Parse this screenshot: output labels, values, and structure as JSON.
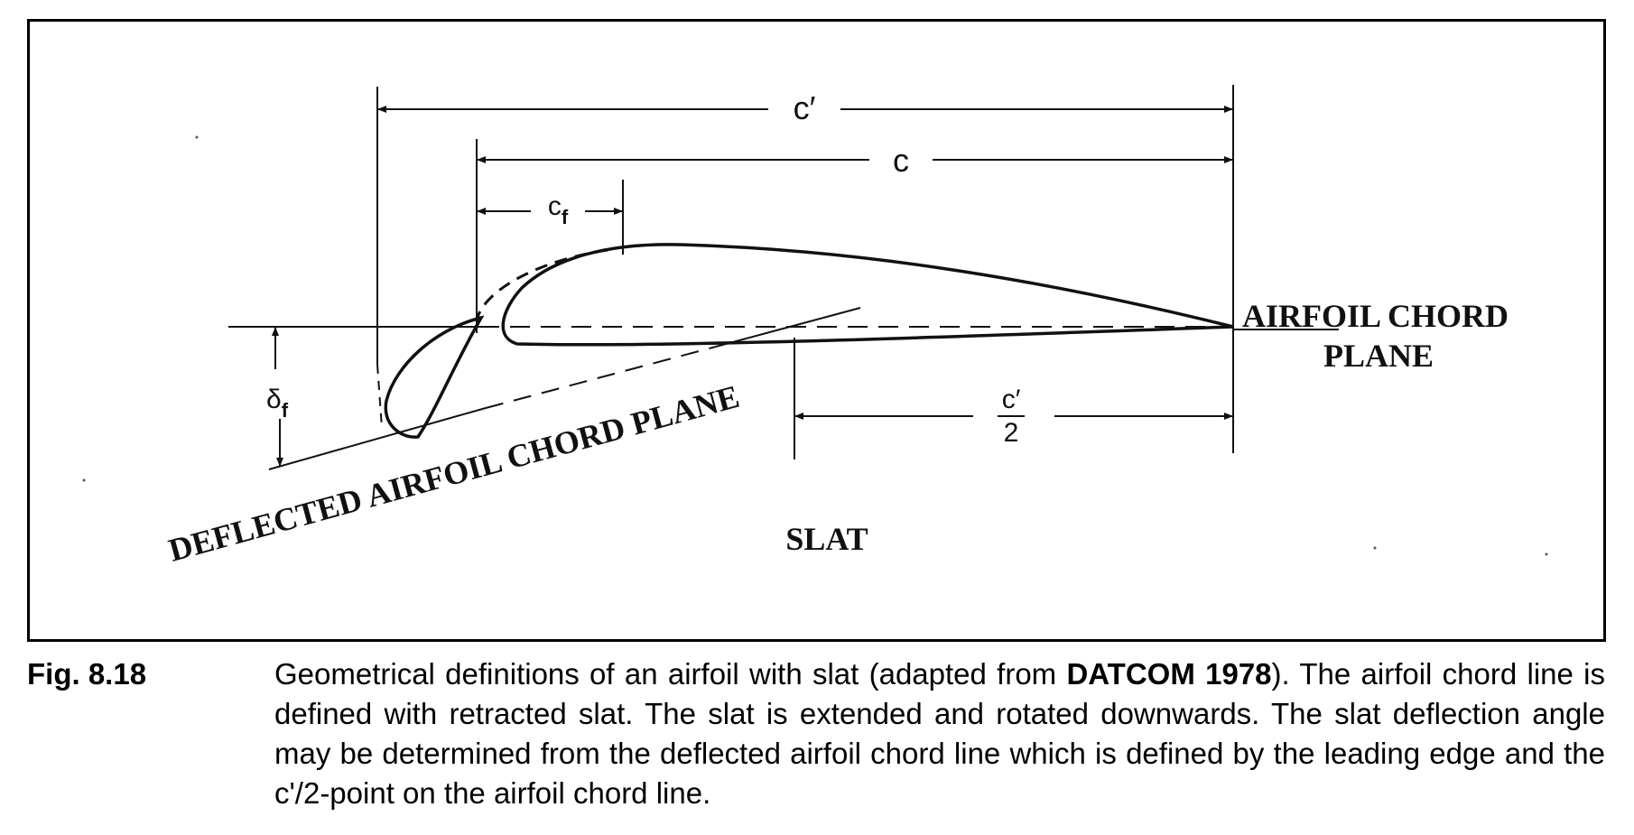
{
  "diagram": {
    "labels": {
      "c_prime": "c′",
      "c": "c",
      "c_f": "c",
      "c_f_sub": "f",
      "delta_f": "δ",
      "delta_f_sub": "f",
      "airfoil_chord_plane_line1": "AIRFOIL CHORD",
      "airfoil_chord_plane_line2": "PLANE",
      "deflected_chord_plane": "DEFLECTED AIRFOIL CHORD PLANE",
      "half_chord_num": "c′",
      "half_chord_den": "2",
      "slat": "SLAT"
    },
    "colors": {
      "ink": "#111111",
      "frame": "#000000"
    }
  },
  "caption": {
    "figure_number": "Fig. 8.18",
    "text_part1": "Geometrical definitions of an airfoil with slat (adapted from ",
    "text_bold": "DATCOM 1978",
    "text_part2": "). The airfoil chord line is defined with retracted slat. The slat is extended and rotated downwards. The slat deflection angle may be determined from the deflected airfoil chord line which is defined by the leading edge and the c'/2-point on the airfoil chord line."
  }
}
